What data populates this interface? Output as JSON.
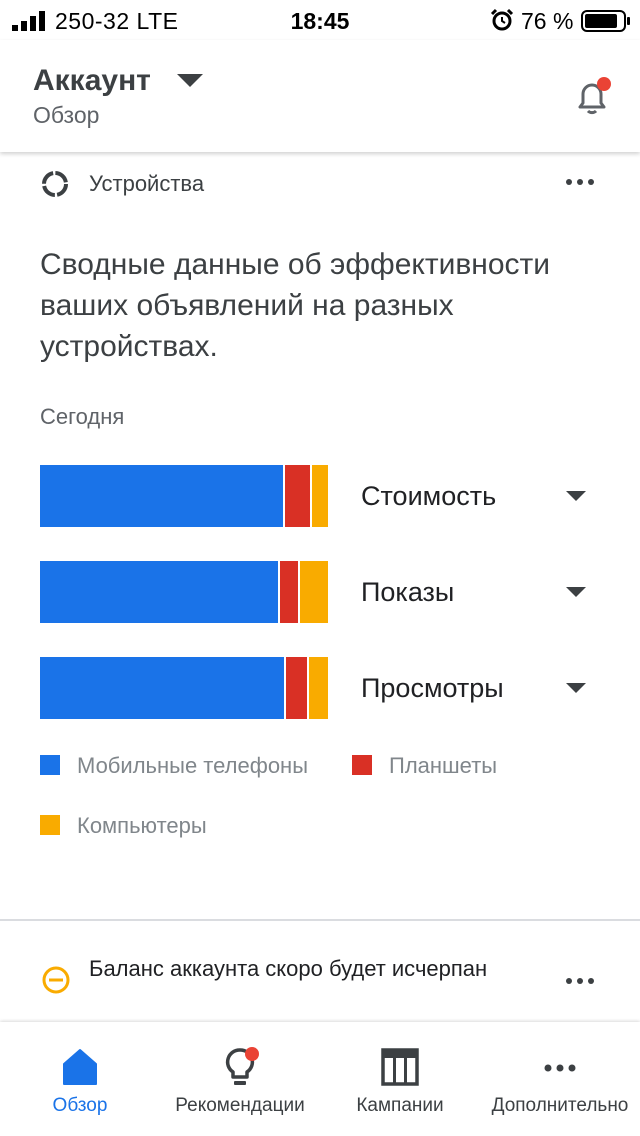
{
  "status_bar": {
    "carrier": "250-32  LTE",
    "time": "18:45",
    "battery_percent": "76 %"
  },
  "header": {
    "title": "Аккаунт",
    "subtitle": "Обзор",
    "has_notification": true
  },
  "devices_card": {
    "label": "Устройства",
    "headline": "Сводные данные об эффективности ваших объявлений на разных устройствах.",
    "period": "Сегодня",
    "colors": {
      "mobile": "#1a73e8",
      "tablet": "#d93025",
      "desktop": "#f9ab00"
    },
    "metrics": [
      {
        "label": "Стоимость"
      },
      {
        "label": "Показы"
      },
      {
        "label": "Просмотры"
      }
    ],
    "legend": [
      {
        "label": "Мобильные телефоны",
        "color": "#1a73e8"
      },
      {
        "label": "Планшеты",
        "color": "#d93025"
      },
      {
        "label": "Компьютеры",
        "color": "#f9ab00"
      }
    ]
  },
  "chart_data": {
    "type": "bar",
    "orientation": "horizontal-stacked-100",
    "categories": [
      "Стоимость",
      "Показы",
      "Просмотры"
    ],
    "series": [
      {
        "name": "Мобильные телефоны",
        "values": [
          85,
          83.5,
          85.5
        ]
      },
      {
        "name": "Планшеты",
        "values": [
          9.5,
          7,
          8
        ]
      },
      {
        "name": "Компьютеры",
        "values": [
          5.5,
          9.5,
          6.5
        ]
      }
    ],
    "xlim": [
      0,
      100
    ],
    "legend_position": "bottom"
  },
  "balance_card": {
    "text": "Баланс аккаунта скоро будет исчерпан",
    "warn_color": "#f9ab00"
  },
  "bottom_nav": {
    "items": [
      {
        "label": "Обзор",
        "icon": "home-icon",
        "active": true
      },
      {
        "label": "Рекомендации",
        "icon": "lightbulb-icon",
        "badge": true
      },
      {
        "label": "Кампании",
        "icon": "table-icon"
      },
      {
        "label": "Дополнительно",
        "icon": "more-horizontal-icon"
      }
    ],
    "active_color": "#1a73e8"
  }
}
